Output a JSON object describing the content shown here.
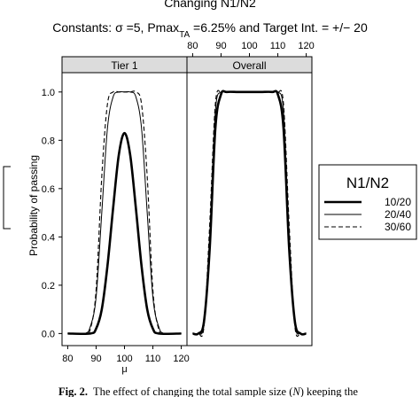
{
  "figure_title": "Changing N1/N2",
  "constants": {
    "prefix": "Constants: σ =5,  Pmax",
    "pmax_subscript": "TA",
    "suffix": " =6.25% and Target Int. = +/− 20"
  },
  "caption": {
    "label": "Fig. 2.",
    "text_before_n": "The effect of changing the total sample size (",
    "n_symbol": "N",
    "text_after_n": ") keeping the"
  },
  "chart_data": {
    "type": "line",
    "ylabel": "Probability of passing",
    "xlabel": "μ",
    "xlim": [
      78,
      122
    ],
    "ylim": [
      -0.05,
      1.08
    ],
    "x_ticks": [
      "80",
      "90",
      "100",
      "110",
      "120"
    ],
    "y_ticks": [
      "0.0",
      "0.2",
      "0.4",
      "0.6",
      "0.8",
      "1.0"
    ],
    "grid": false,
    "legend": {
      "title": "N1/N2",
      "placement": "right",
      "entries": [
        {
          "label": "10/20",
          "style": "thick-solid"
        },
        {
          "label": "20/40",
          "style": "thin-solid"
        },
        {
          "label": "30/60",
          "style": "dashed"
        }
      ]
    },
    "panels": [
      {
        "title": "Tier 1",
        "series": [
          {
            "name": "10/20",
            "x": [
              80,
              88,
              90,
              92,
              94,
              96,
              98,
              100,
              102,
              104,
              106,
              108,
              110,
              112,
              120
            ],
            "y": [
              0,
              0,
              0.02,
              0.1,
              0.28,
              0.52,
              0.74,
              0.83,
              0.74,
              0.52,
              0.28,
              0.1,
              0.02,
              0,
              0
            ]
          },
          {
            "name": "20/40",
            "x": [
              80,
              86,
              88,
              90,
              92,
              94,
              96,
              98,
              100,
              102,
              104,
              106,
              108,
              110,
              112,
              114,
              120
            ],
            "y": [
              0,
              0,
              0.03,
              0.15,
              0.5,
              0.85,
              0.98,
              1.0,
              1.0,
              1.0,
              0.98,
              0.85,
              0.5,
              0.15,
              0.03,
              0,
              0
            ]
          },
          {
            "name": "30/60",
            "x": [
              80,
              86,
              88,
              90,
              92,
              94,
              96,
              98,
              100,
              102,
              104,
              106,
              108,
              110,
              112,
              114,
              120
            ],
            "y": [
              0,
              0,
              0.02,
              0.18,
              0.65,
              0.95,
              1.0,
              1.0,
              1.0,
              1.0,
              1.0,
              0.95,
              0.65,
              0.18,
              0.02,
              0,
              0
            ]
          }
        ]
      },
      {
        "title": "Overall",
        "series": [
          {
            "name": "10/20",
            "x": [
              80,
              82,
              84,
              86,
              88,
              90,
              92,
              96,
              100,
              104,
              108,
              110,
              112,
              114,
              116,
              118,
              120
            ],
            "y": [
              0,
              0,
              0.05,
              0.35,
              0.85,
              0.99,
              1.0,
              1.0,
              1.0,
              1.0,
              1.0,
              0.99,
              0.85,
              0.35,
              0.05,
              0,
              0
            ]
          },
          {
            "name": "20/40",
            "x": [
              80,
              82,
              84,
              86,
              88,
              90,
              92,
              96,
              100,
              104,
              108,
              110,
              112,
              114,
              116,
              118,
              120
            ],
            "y": [
              0,
              0,
              0.04,
              0.4,
              0.92,
              1.0,
              1.0,
              1.0,
              1.0,
              1.0,
              1.0,
              1.0,
              0.92,
              0.4,
              0.04,
              0,
              0
            ]
          },
          {
            "name": "30/60",
            "x": [
              80,
              82,
              84,
              86,
              88,
              90,
              92,
              96,
              100,
              104,
              108,
              110,
              112,
              114,
              116,
              118,
              120
            ],
            "y": [
              0,
              0,
              0.03,
              0.45,
              0.95,
              1.0,
              1.0,
              1.0,
              1.0,
              1.0,
              1.0,
              1.0,
              0.95,
              0.45,
              0.03,
              0,
              0
            ]
          }
        ]
      }
    ]
  }
}
